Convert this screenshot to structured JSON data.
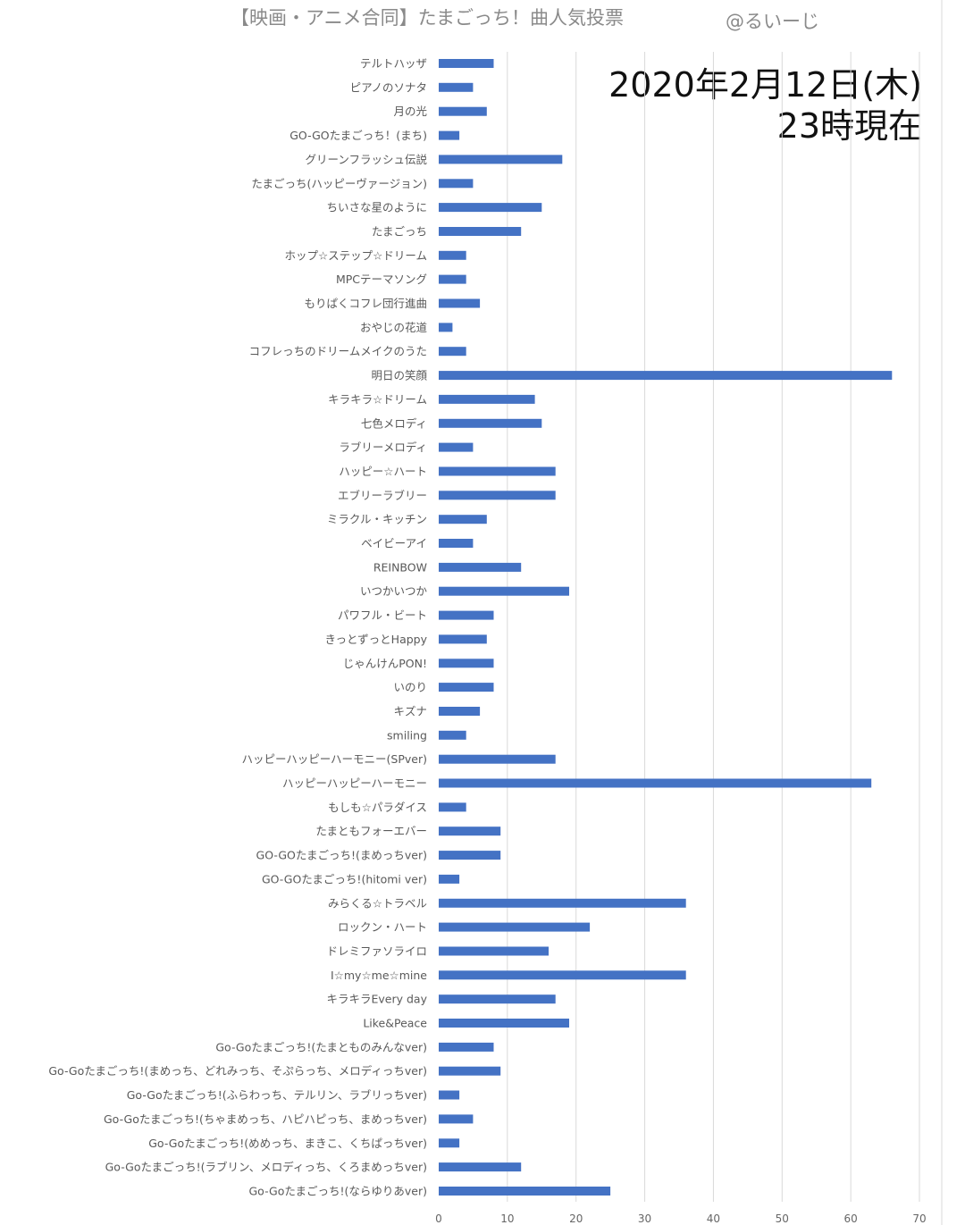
{
  "chart_data": {
    "type": "bar",
    "orientation": "horizontal",
    "title": "【映画・アニメ合同】たまごっち！曲人気投票",
    "author": "@るいーじ",
    "annotation": [
      "2020年2月12日(木)",
      "23時現在"
    ],
    "xlim": [
      0,
      70
    ],
    "x_ticks": [
      0,
      10,
      20,
      30,
      40,
      50,
      60,
      70
    ],
    "grid": true,
    "bar_color": "#4472c4",
    "categories": [
      "テルトハッザ",
      "ピアノのソナタ",
      "月の光",
      "GO-GOたまごっち！(まち)",
      "グリーンフラッシュ伝説",
      "たまごっち(ハッピーヴァージョン)",
      "ちいさな星のように",
      "たまごっち",
      "ホップ☆ステップ☆ドリーム",
      "MPCテーマソング",
      "もりぱくコフレ団行進曲",
      "おやじの花道",
      "コフレっちのドリームメイクのうた",
      "明日の笑顔",
      "キラキラ☆ドリーム",
      "七色メロディ",
      "ラブリーメロディ",
      "ハッピー☆ハート",
      "エブリーラブリー",
      "ミラクル・キッチン",
      "ベイビーアイ",
      "REINBOW",
      "いつかいつか",
      "パワフル・ビート",
      "きっとずっとHappy",
      "じゃんけんPON!",
      "いのり",
      "キズナ",
      "smiling",
      "ハッピーハッピーハーモニー(SPver)",
      "ハッピーハッピーハーモニー",
      "もしも☆パラダイス",
      "たまともフォーエバー",
      "GO-GOたまごっち!(まめっちver)",
      "GO-GOたまごっち!(hitomi ver)",
      "みらくる☆トラベル",
      "ロックン・ハート",
      "ドレミファソライロ",
      "I☆my☆me☆mine",
      "キラキラEvery day",
      "Like&Peace",
      "Go-Goたまごっち!(たまとものみんなver)",
      "Go-Goたまごっち!(まめっち、どれみっち、そぷらっち、メロディっちver)",
      "Go-Goたまごっち!(ふらわっち、テルリン、ラブリっちver)",
      "Go-Goたまごっち!(ちゃまめっち、ハピハピっち、まめっちver)",
      "Go-Goたまごっち!(めめっち、まきこ、くちぱっちver)",
      "Go-Goたまごっち!(ラブリン、メロディっち、くろまめっちver)",
      "Go-Goたまごっち!(ならゆりあver)"
    ],
    "values": [
      8,
      5,
      7,
      3,
      18,
      5,
      15,
      12,
      4,
      4,
      6,
      2,
      4,
      66,
      14,
      15,
      5,
      17,
      17,
      7,
      5,
      12,
      19,
      8,
      7,
      8,
      8,
      6,
      4,
      17,
      63,
      4,
      9,
      9,
      3,
      36,
      22,
      16,
      36,
      17,
      19,
      8,
      9,
      3,
      5,
      3,
      12,
      25
    ]
  }
}
